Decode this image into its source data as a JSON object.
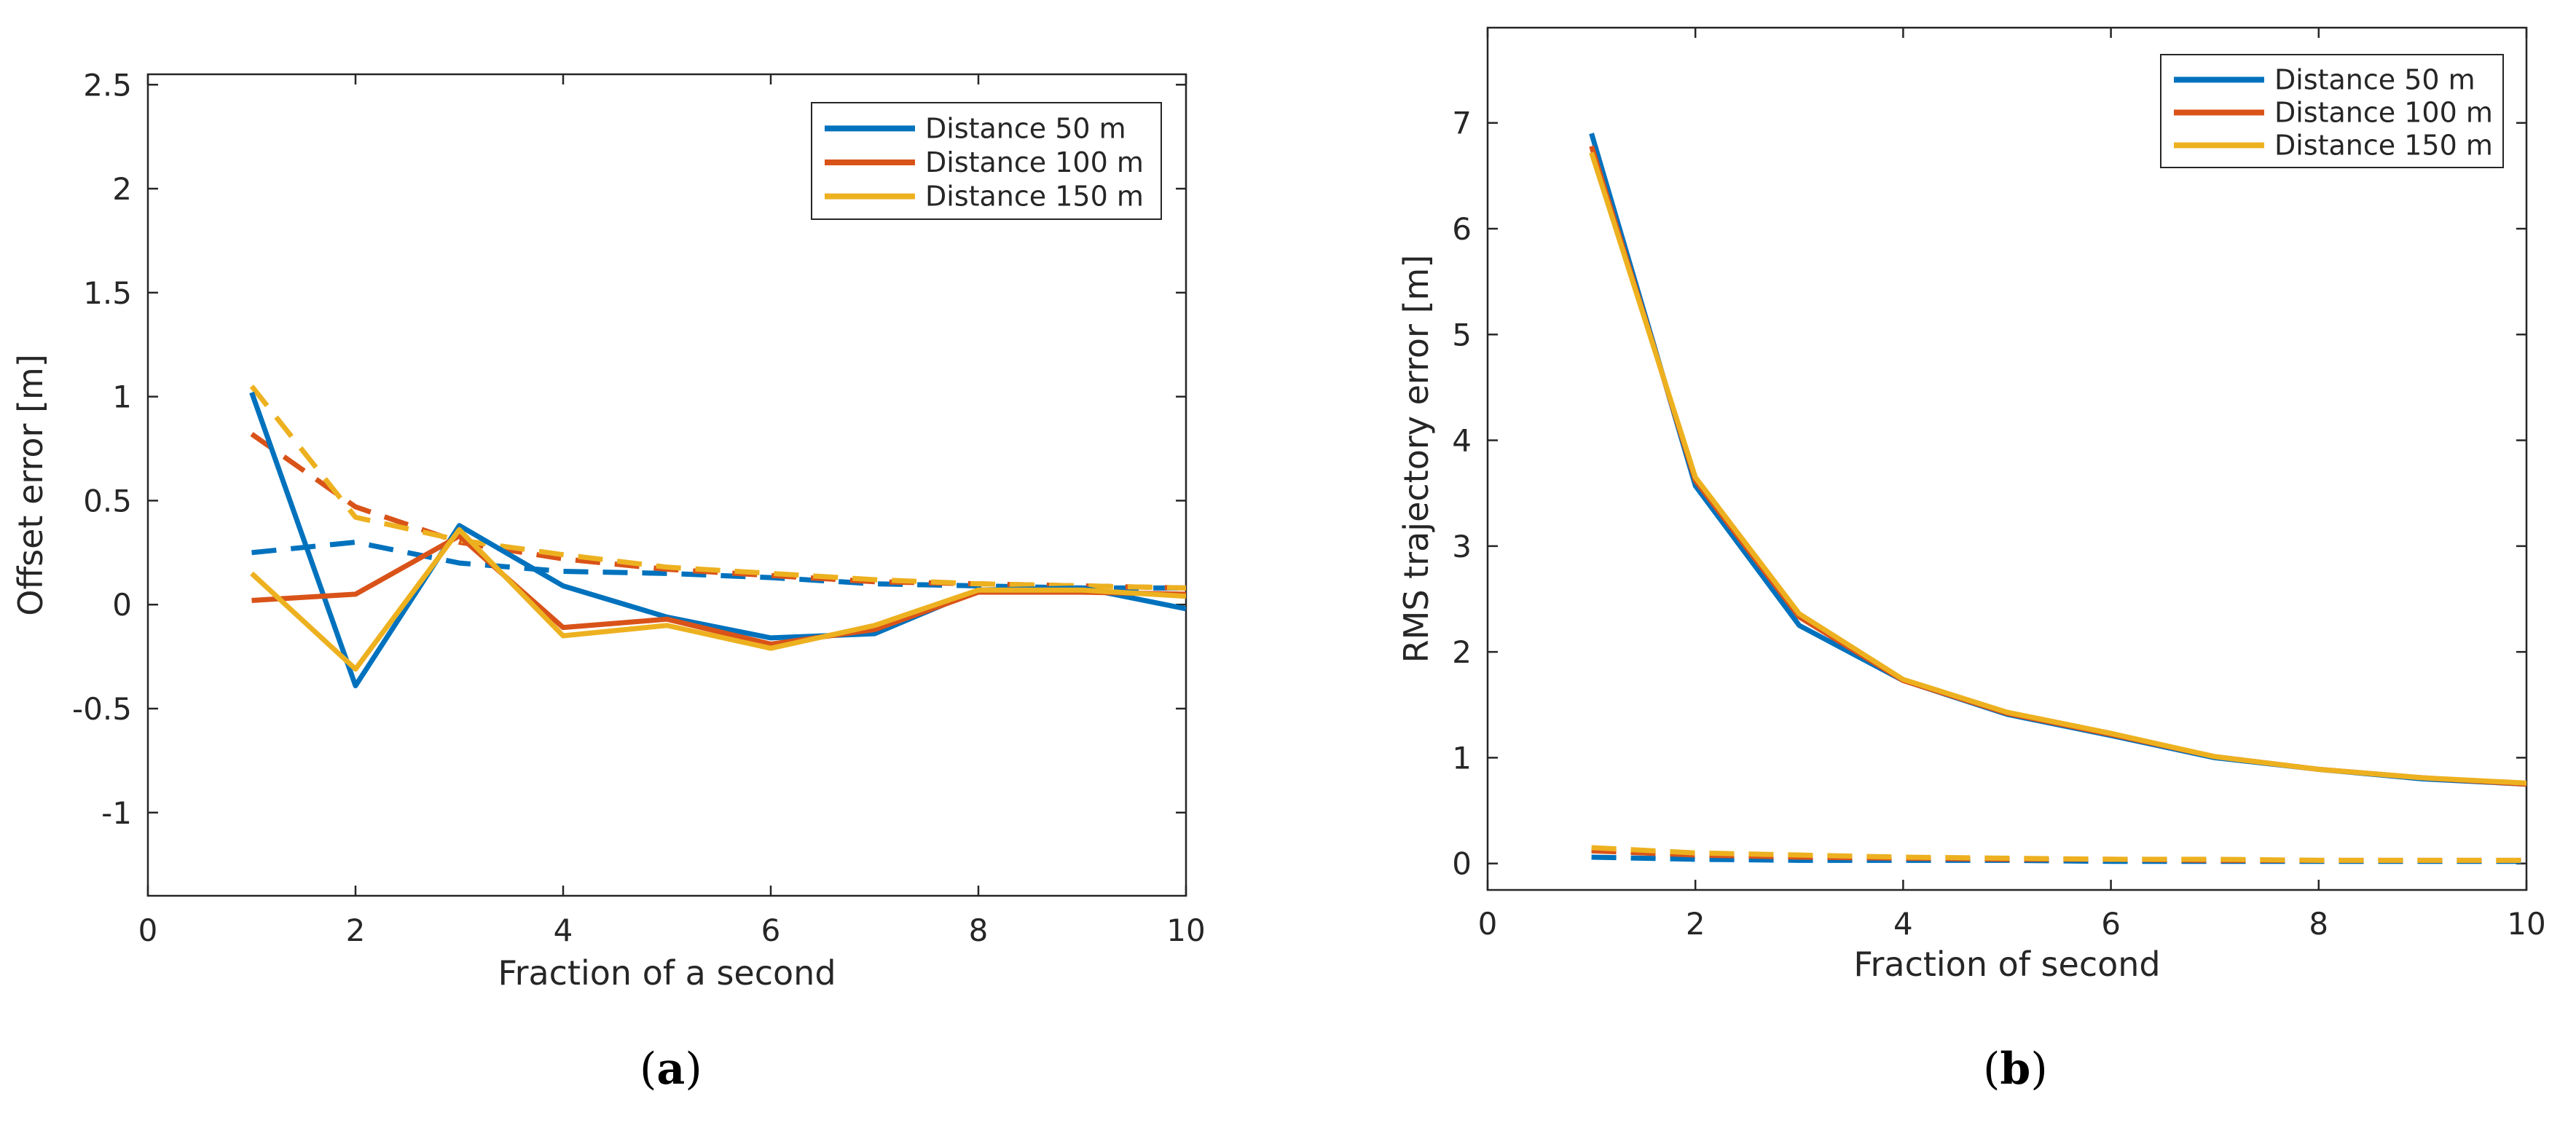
{
  "chart_data": [
    {
      "type": "line",
      "caption": "a",
      "xlabel": "Fraction of a second",
      "ylabel": "Offset error [m]",
      "xlim": [
        0,
        10
      ],
      "ylim": [
        -1.4,
        2.55
      ],
      "xticks": [
        0,
        2,
        4,
        6,
        8,
        10
      ],
      "yticks": [
        -1,
        -0.5,
        0,
        0.5,
        1,
        1.5,
        2,
        2.5
      ],
      "grid": false,
      "legend_position": "top-right",
      "x": [
        1,
        2,
        3,
        4,
        5,
        6,
        7,
        8,
        9,
        10
      ],
      "series": [
        {
          "name": "Distance 50 m",
          "color": "#0072BD",
          "style": "solid",
          "values": [
            1.02,
            -0.39,
            0.38,
            0.09,
            -0.06,
            -0.16,
            -0.14,
            0.07,
            0.08,
            -0.02
          ]
        },
        {
          "name": "Distance 100 m",
          "color": "#D95319",
          "style": "solid",
          "values": [
            0.02,
            0.05,
            0.33,
            -0.11,
            -0.07,
            -0.19,
            -0.12,
            0.06,
            0.06,
            0.05
          ]
        },
        {
          "name": "Distance 150 m",
          "color": "#EDB120",
          "style": "solid",
          "values": [
            0.15,
            -0.31,
            0.36,
            -0.15,
            -0.1,
            -0.21,
            -0.1,
            0.07,
            0.07,
            0.04
          ]
        },
        {
          "color": "#0072BD",
          "style": "dashed",
          "values": [
            0.25,
            0.3,
            0.2,
            0.16,
            0.15,
            0.13,
            0.1,
            0.09,
            0.08,
            0.08
          ]
        },
        {
          "color": "#D95319",
          "style": "dashed",
          "values": [
            0.82,
            0.47,
            0.3,
            0.22,
            0.17,
            0.14,
            0.11,
            0.1,
            0.09,
            0.08
          ]
        },
        {
          "color": "#EDB120",
          "style": "dashed",
          "values": [
            1.05,
            0.42,
            0.31,
            0.24,
            0.18,
            0.15,
            0.12,
            0.1,
            0.09,
            0.08
          ]
        }
      ]
    },
    {
      "type": "line",
      "caption": "b",
      "xlabel": "Fraction of second",
      "ylabel": "RMS trajectory error [m]",
      "xlim": [
        0,
        10
      ],
      "ylim": [
        -0.25,
        7.9
      ],
      "xticks": [
        0,
        2,
        4,
        6,
        8,
        10
      ],
      "yticks": [
        0,
        1,
        2,
        3,
        4,
        5,
        6,
        7
      ],
      "grid": false,
      "legend_position": "top-right",
      "x": [
        1,
        2,
        3,
        4,
        5,
        6,
        7,
        8,
        9,
        10
      ],
      "series": [
        {
          "name": "Distance 50 m",
          "color": "#0072BD",
          "style": "solid",
          "values": [
            6.9,
            3.57,
            2.25,
            1.73,
            1.41,
            1.21,
            1.0,
            0.89,
            0.8,
            0.75
          ]
        },
        {
          "name": "Distance 100 m",
          "color": "#D95319",
          "style": "solid",
          "values": [
            6.78,
            3.62,
            2.33,
            1.73,
            1.42,
            1.22,
            1.01,
            0.89,
            0.81,
            0.75
          ]
        },
        {
          "name": "Distance 150 m",
          "color": "#EDB120",
          "style": "solid",
          "values": [
            6.72,
            3.65,
            2.36,
            1.74,
            1.43,
            1.23,
            1.01,
            0.89,
            0.81,
            0.76
          ]
        },
        {
          "color": "#0072BD",
          "style": "dashed",
          "values": [
            0.06,
            0.04,
            0.03,
            0.03,
            0.03,
            0.02,
            0.02,
            0.02,
            0.02,
            0.02
          ]
        },
        {
          "color": "#D95319",
          "style": "dashed",
          "values": [
            0.12,
            0.08,
            0.06,
            0.05,
            0.04,
            0.04,
            0.03,
            0.03,
            0.03,
            0.03
          ]
        },
        {
          "color": "#EDB120",
          "style": "dashed",
          "values": [
            0.15,
            0.1,
            0.08,
            0.06,
            0.05,
            0.04,
            0.04,
            0.03,
            0.03,
            0.03
          ]
        }
      ]
    }
  ]
}
